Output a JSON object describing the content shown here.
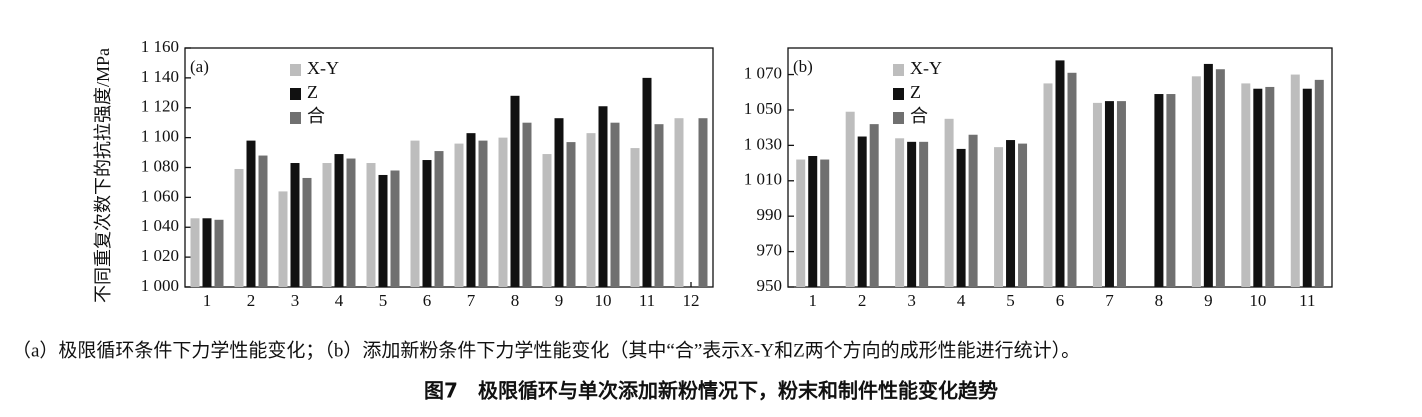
{
  "chart_data": [
    {
      "type": "bar",
      "panel_label": "(a)",
      "ylabel": "不同重复次数下的抗拉强度/MPa",
      "categories": [
        "1",
        "2",
        "3",
        "4",
        "5",
        "6",
        "7",
        "8",
        "9",
        "10",
        "11",
        "12"
      ],
      "series": [
        {
          "name": "X-Y",
          "color": "#bdbdbd",
          "values": [
            1046,
            1079,
            1064,
            1083,
            1083,
            1098,
            1096,
            1100,
            1089,
            1103,
            1093,
            1113
          ]
        },
        {
          "name": "Z",
          "color": "#111111",
          "values": [
            1046,
            1098,
            1083,
            1089,
            1075,
            1085,
            1103,
            1128,
            1113,
            1121,
            1140,
            null
          ]
        },
        {
          "name": "合",
          "color": "#707070",
          "values": [
            1045,
            1088,
            1073,
            1086,
            1078,
            1091,
            1098,
            1110,
            1097,
            1110,
            1109,
            1113
          ]
        }
      ],
      "ylim": [
        1000,
        1160
      ],
      "yticks": [
        {
          "value": 1000,
          "label": "1 000"
        },
        {
          "value": 1020,
          "label": "1 020"
        },
        {
          "value": 1040,
          "label": "1 040"
        },
        {
          "value": 1060,
          "label": "1 060"
        },
        {
          "value": 1080,
          "label": "1 080"
        },
        {
          "value": 1100,
          "label": "1 100"
        },
        {
          "value": 1120,
          "label": "1 120"
        },
        {
          "value": 1140,
          "label": "1 140"
        },
        {
          "value": 1160,
          "label": "1 160"
        }
      ],
      "grid": false,
      "legend": "upper left"
    },
    {
      "type": "bar",
      "panel_label": "(b)",
      "categories": [
        "1",
        "2",
        "3",
        "4",
        "5",
        "6",
        "7",
        "8",
        "9",
        "10",
        "11"
      ],
      "series": [
        {
          "name": "X-Y",
          "color": "#bdbdbd",
          "values": [
            1022,
            1049,
            1034,
            1045,
            1029,
            1065,
            1054,
            null,
            1069,
            1065,
            1070
          ]
        },
        {
          "name": "Z",
          "color": "#111111",
          "values": [
            1024,
            1035,
            1032,
            1028,
            1033,
            1078,
            1055,
            1059,
            1076,
            1062,
            1062
          ]
        },
        {
          "name": "合",
          "color": "#707070",
          "values": [
            1022,
            1042,
            1032,
            1036,
            1031,
            1071,
            1055,
            1059,
            1073,
            1063,
            1067
          ]
        }
      ],
      "ylim": [
        950,
        1085
      ],
      "yticks": [
        950,
        970,
        990,
        {
          "value": 1010,
          "label": "1 010"
        },
        {
          "value": 1030,
          "label": "1 030"
        },
        {
          "value": 1050,
          "label": "1 050"
        },
        {
          "value": 1070,
          "label": "1 070"
        }
      ],
      "grid": false,
      "legend": "upper left"
    }
  ],
  "caption": "（a）极限循环条件下力学性能变化；（b）添加新粉条件下力学性能变化（其中“合”表示X-Y和Z两个方向的成形性能进行统计）。",
  "figure_title": "图7　极限循环与单次添加新粉情况下，粉末和制件性能变化趋势"
}
